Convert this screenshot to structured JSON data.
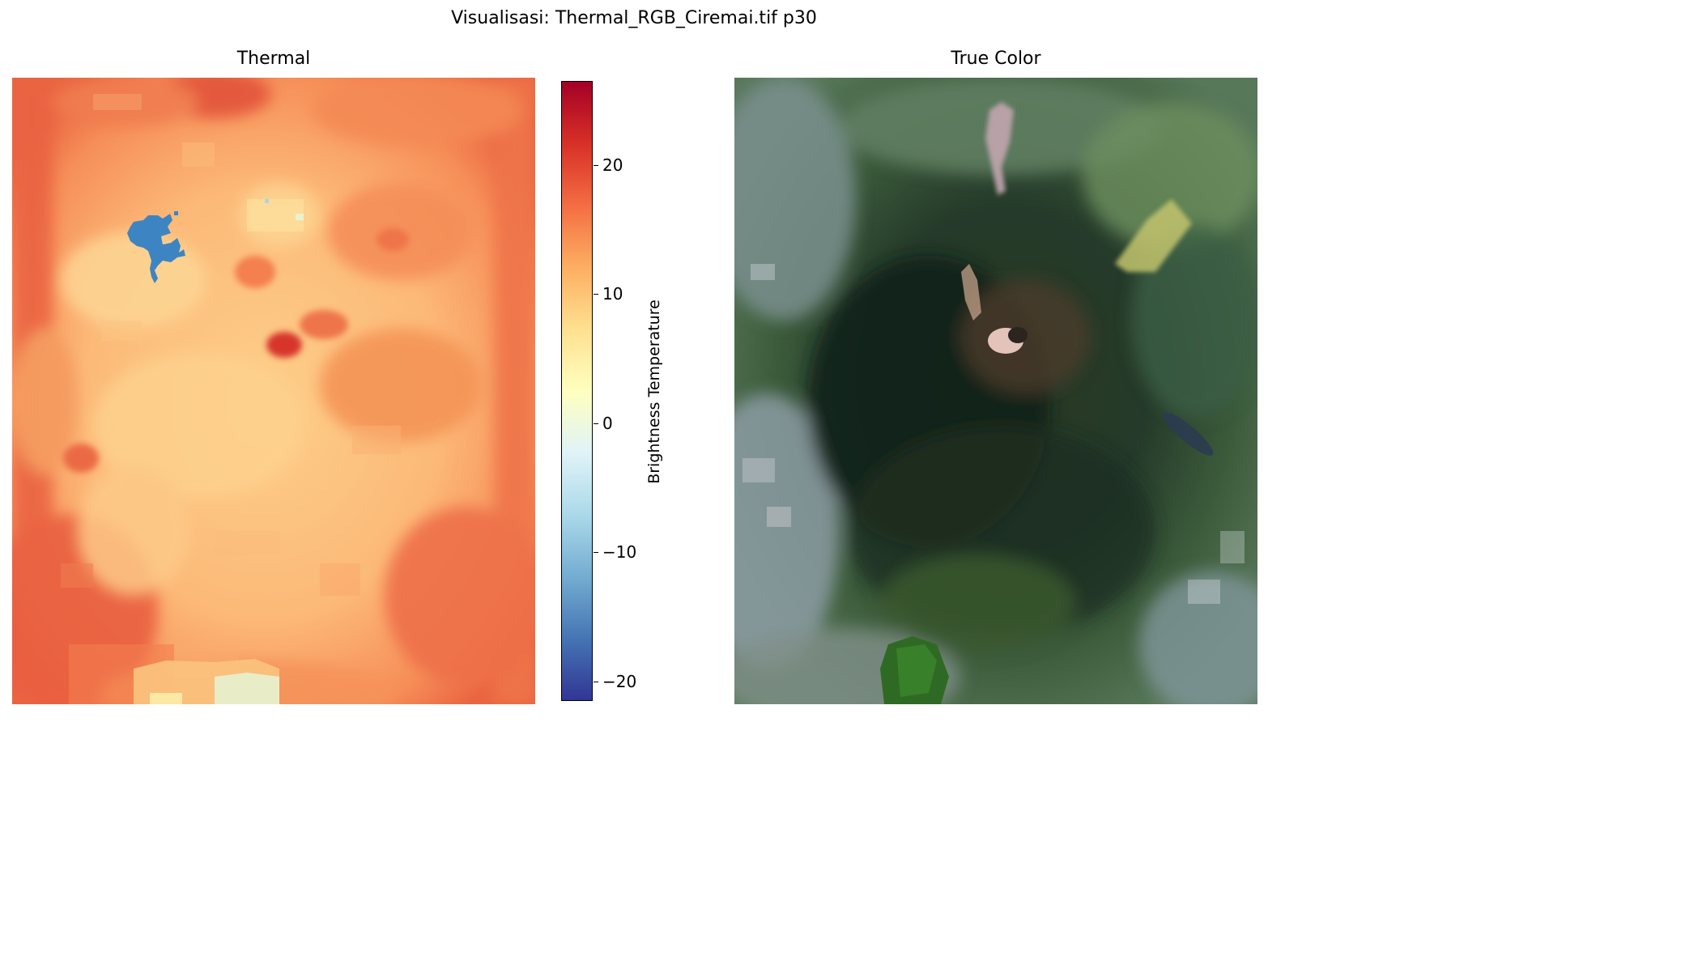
{
  "suptitle": "Visualisasi: Thermal_RGB_Ciremai.tif p30",
  "chart_data": [
    {
      "type": "heatmap",
      "title": "Thermal",
      "axis": "off",
      "colormap": "RdYlBu_r",
      "colormap_stops": [
        "#313695",
        "#4575b4",
        "#74add1",
        "#abd9e9",
        "#e0f3f8",
        "#ffffbf",
        "#fee090",
        "#fdae61",
        "#f46d43",
        "#d73027",
        "#a50026"
      ],
      "colorbar": {
        "label": "Brightness Temperature",
        "range": [
          -21.5,
          26.5
        ],
        "ticks": [
          20,
          10,
          0,
          -10,
          -20
        ],
        "tick_labels": [
          "20",
          "10",
          "0",
          "−10",
          "−20"
        ]
      },
      "value_summary": {
        "background": 17,
        "edges": 23,
        "cold_patch": -11,
        "hot_spot": 25
      }
    },
    {
      "type": "heatmap",
      "title": "True Color",
      "axis": "off",
      "colors": {
        "forest": "#3b5a33",
        "dark_slopes": "#162216",
        "settlement": "#8f9faa",
        "crater": "#d9b2a8",
        "bright_field": "#c9cf7a"
      }
    }
  ]
}
